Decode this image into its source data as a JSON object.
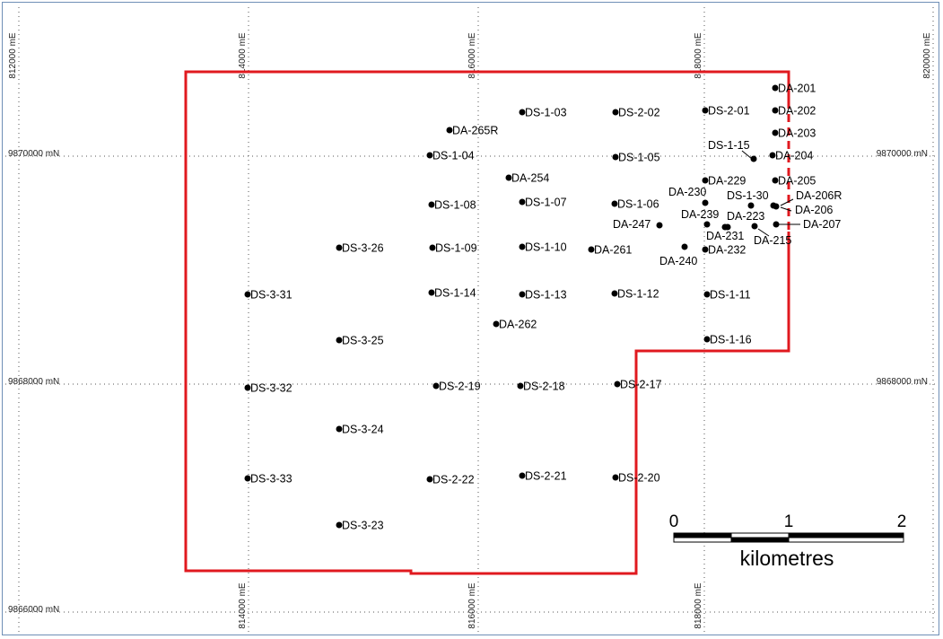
{
  "grid": {
    "easting_labels": [
      "812000 mE",
      "814000 mE",
      "816000 mE",
      "818000 mE",
      "820000 mE"
    ],
    "northing_labels": [
      "9870000 mN",
      "9868000 mN",
      "9866000 mN"
    ]
  },
  "colors": {
    "boundary": "#e0191f",
    "drillhole": "#000000"
  },
  "scale_bar": {
    "ticks": [
      "0",
      "1",
      "2"
    ],
    "unit": "kilometres"
  },
  "drillholes": [
    {
      "id": "DA-201",
      "type": "DA"
    },
    {
      "id": "DA-202",
      "type": "DA"
    },
    {
      "id": "DA-203",
      "type": "DA"
    },
    {
      "id": "DA-204",
      "type": "DA"
    },
    {
      "id": "DA-205",
      "type": "DA"
    },
    {
      "id": "DA-206R",
      "type": "DA"
    },
    {
      "id": "DA-206",
      "type": "DA"
    },
    {
      "id": "DA-207",
      "type": "DA"
    },
    {
      "id": "DA-215",
      "type": "DA"
    },
    {
      "id": "DA-223",
      "type": "DA"
    },
    {
      "id": "DA-229",
      "type": "DA"
    },
    {
      "id": "DA-230",
      "type": "DA"
    },
    {
      "id": "DA-231",
      "type": "DA"
    },
    {
      "id": "DA-232",
      "type": "DA"
    },
    {
      "id": "DA-239",
      "type": "DA"
    },
    {
      "id": "DA-240",
      "type": "DA"
    },
    {
      "id": "DA-247",
      "type": "DA"
    },
    {
      "id": "DA-254",
      "type": "DA"
    },
    {
      "id": "DA-261",
      "type": "DA"
    },
    {
      "id": "DA-262",
      "type": "DA"
    },
    {
      "id": "DA-265R",
      "type": "DA"
    },
    {
      "id": "DS-1-03",
      "type": "DS"
    },
    {
      "id": "DS-1-04",
      "type": "DS"
    },
    {
      "id": "DS-1-05",
      "type": "DS"
    },
    {
      "id": "DS-1-06",
      "type": "DS"
    },
    {
      "id": "DS-1-07",
      "type": "DS"
    },
    {
      "id": "DS-1-08",
      "type": "DS"
    },
    {
      "id": "DS-1-09",
      "type": "DS"
    },
    {
      "id": "DS-1-10",
      "type": "DS"
    },
    {
      "id": "DS-1-11",
      "type": "DS"
    },
    {
      "id": "DS-1-12",
      "type": "DS"
    },
    {
      "id": "DS-1-13",
      "type": "DS"
    },
    {
      "id": "DS-1-14",
      "type": "DS"
    },
    {
      "id": "DS-1-15",
      "type": "DS"
    },
    {
      "id": "DS-1-16",
      "type": "DS"
    },
    {
      "id": "DS-1-30",
      "type": "DS"
    },
    {
      "id": "DS-2-01",
      "type": "DS"
    },
    {
      "id": "DS-2-02",
      "type": "DS"
    },
    {
      "id": "DS-2-17",
      "type": "DS"
    },
    {
      "id": "DS-2-18",
      "type": "DS"
    },
    {
      "id": "DS-2-19",
      "type": "DS"
    },
    {
      "id": "DS-2-20",
      "type": "DS"
    },
    {
      "id": "DS-2-21",
      "type": "DS"
    },
    {
      "id": "DS-2-22",
      "type": "DS"
    },
    {
      "id": "DS-3-23",
      "type": "DS"
    },
    {
      "id": "DS-3-24",
      "type": "DS"
    },
    {
      "id": "DS-3-25",
      "type": "DS"
    },
    {
      "id": "DS-3-26",
      "type": "DS"
    },
    {
      "id": "DS-3-31",
      "type": "DS"
    },
    {
      "id": "DS-3-32",
      "type": "DS"
    },
    {
      "id": "DS-3-33",
      "type": "DS"
    }
  ]
}
